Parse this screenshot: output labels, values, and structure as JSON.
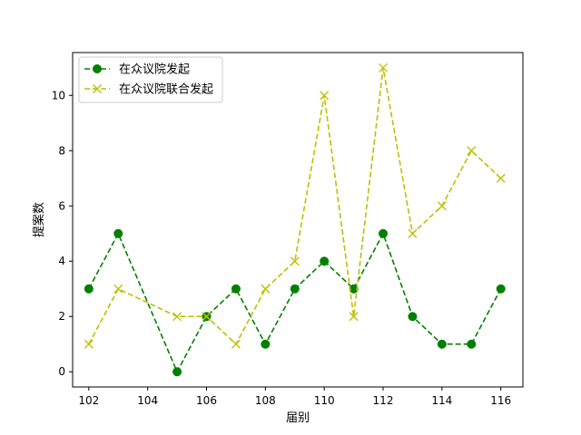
{
  "chart_data": {
    "type": "line",
    "title": "",
    "xlabel": "届别",
    "ylabel": "提案数",
    "x": [
      102,
      103,
      105,
      106,
      107,
      108,
      109,
      110,
      111,
      112,
      113,
      114,
      115,
      116
    ],
    "xticks": [
      102,
      104,
      106,
      108,
      110,
      112,
      114,
      116
    ],
    "yticks": [
      0,
      2,
      4,
      6,
      8,
      10
    ],
    "xlim": [
      101.45,
      116.75
    ],
    "ylim": [
      -0.55,
      11.55
    ],
    "grid": false,
    "legend_position": "top-left",
    "series": [
      {
        "name": "在众议院发起",
        "color": "#008000",
        "marker": "circle",
        "line_style": "dashed",
        "values": [
          3,
          5,
          0,
          2,
          3,
          1,
          3,
          4,
          3,
          5,
          2,
          1,
          1,
          3
        ]
      },
      {
        "name": "在众议院联合发起",
        "color": "#bfbf00",
        "marker": "x",
        "line_style": "dashed",
        "values": [
          1,
          3,
          2,
          2,
          1,
          3,
          4,
          10,
          2,
          11,
          5,
          6,
          8,
          7
        ]
      }
    ]
  }
}
